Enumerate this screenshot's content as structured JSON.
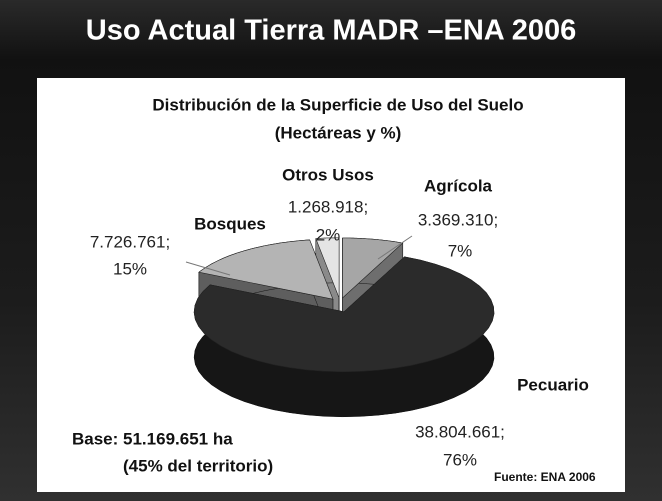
{
  "slide": {
    "title": "Uso Actual Tierra MADR –ENA 2006"
  },
  "chart_data": {
    "type": "pie",
    "title": "Distribución de la Superficie de Uso del Suelo",
    "subtitle": "(Hectáreas y %)",
    "categories": [
      "Agrícola",
      "Pecuario",
      "Bosques",
      "Otros Usos"
    ],
    "values": [
      3369310,
      38804661,
      7726761,
      1268918
    ],
    "value_labels": [
      "3.369.310;",
      "38.804.661;",
      "7.726.761;",
      "1.268.918;"
    ],
    "percentages": [
      7,
      76,
      15,
      2
    ],
    "percentage_labels": [
      "7%",
      "76%",
      "15%",
      "2%"
    ],
    "colors": [
      "#a6a6a6",
      "#2b2b2b",
      "#b4b4b4",
      "#e4e4e4"
    ],
    "side_colors": [
      "#6e6e6e",
      "#161616",
      "#5e5e5e",
      "#8a8a8a"
    ],
    "annotations": [
      "Base: 51.169.651 ha",
      "(45% del territorio)"
    ],
    "source": "Fuente: ENA 2006"
  }
}
